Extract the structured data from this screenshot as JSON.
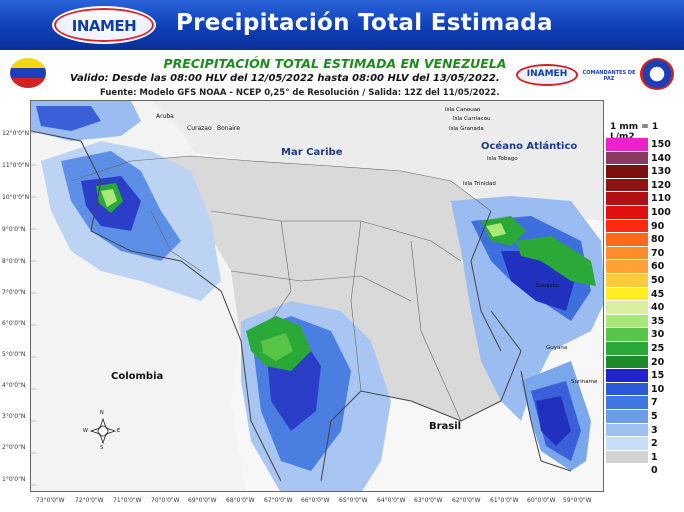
{
  "header": {
    "logo_text": "INAMEH",
    "title": "Precipitación Total Estimada"
  },
  "subheader": {
    "line1": "PRECIPITACIÓN TOTAL ESTIMADA EN VENEZUELA",
    "line2": "Valido: Desde las 08:00 HLV del 12/05/2022 hasta 08:00 HLV del 13/05/2022.",
    "line3": "Fuente: Modelo GFS NOAA - NCEP 0,25° de Resolución / Salida: 12Z del 11/05/2022.",
    "logo_right_1": "INAMEH",
    "logo_right_2": "COMANDANTES DE PAZ"
  },
  "map": {
    "labels": {
      "mar_caribe": "Mar Caribe",
      "oceano_atlantico": "Océano Atlántico",
      "colombia": "Colombia",
      "brasil": "Brasil",
      "aruba": "Aruba",
      "curazao": "Curazao",
      "bonaire": "Bonaire",
      "isla_canouan": "Isla Canouan",
      "isla_carriacou": "Isla Carriacou",
      "isla_granada": "Isla Granada",
      "isla_tobago": "Isla Tobago",
      "isla_trinidad": "Isla Trinidad",
      "guyana": "Guyana",
      "suriname": "Suriname",
      "esequibo": "Esequibo",
      "compass_n": "N",
      "compass_s": "S",
      "compass_e": "E",
      "compass_w": "W"
    },
    "lat_ticks": [
      "12°0'0\"N",
      "11°0'0\"N",
      "10°0'0\"N",
      "9°0'0\"N",
      "8°0'0\"N",
      "7°0'0\"N",
      "6°0'0\"N",
      "5°0'0\"N",
      "4°0'0\"N",
      "3°0'0\"N",
      "2°0'0\"N",
      "1°0'0\"N"
    ],
    "lon_ticks": [
      "73°0'0\"W",
      "72°0'0\"W",
      "71°0'0\"W",
      "70°0'0\"W",
      "69°0'0\"W",
      "68°0'0\"W",
      "67°0'0\"W",
      "66°0'0\"W",
      "65°0'0\"W",
      "64°0'0\"W",
      "63°0'0\"W",
      "62°0'0\"W",
      "61°0'0\"W",
      "60°0'0\"W",
      "59°0'0\"W"
    ]
  },
  "legend": {
    "title": "1 mm = 1 L/m2",
    "items": [
      {
        "value": "150",
        "color": "#ee22cc"
      },
      {
        "value": "140",
        "color": "#8b3a62"
      },
      {
        "value": "130",
        "color": "#7a1010"
      },
      {
        "value": "120",
        "color": "#8e1414"
      },
      {
        "value": "110",
        "color": "#b01010"
      },
      {
        "value": "100",
        "color": "#e01010"
      },
      {
        "value": "90",
        "color": "#ff2a10"
      },
      {
        "value": "80",
        "color": "#ff6a1a"
      },
      {
        "value": "70",
        "color": "#ff8c2a"
      },
      {
        "value": "60",
        "color": "#ffa235"
      },
      {
        "value": "50",
        "color": "#ffc940"
      },
      {
        "value": "45",
        "color": "#ffee22"
      },
      {
        "value": "40",
        "color": "#d8f0a0"
      },
      {
        "value": "35",
        "color": "#a8e878"
      },
      {
        "value": "30",
        "color": "#58c448"
      },
      {
        "value": "25",
        "color": "#2aa838"
      },
      {
        "value": "20",
        "color": "#1e8a2a"
      },
      {
        "value": "15",
        "color": "#2222cc"
      },
      {
        "value": "10",
        "color": "#2a5ad8"
      },
      {
        "value": "7",
        "color": "#3f78e0"
      },
      {
        "value": "5",
        "color": "#6a9ce8"
      },
      {
        "value": "3",
        "color": "#9cc0f0"
      },
      {
        "value": "2",
        "color": "#c8dcf6"
      },
      {
        "value": "1",
        "color": "#d2d2d2"
      },
      {
        "value": "0",
        "color": "#ffffff"
      }
    ]
  }
}
